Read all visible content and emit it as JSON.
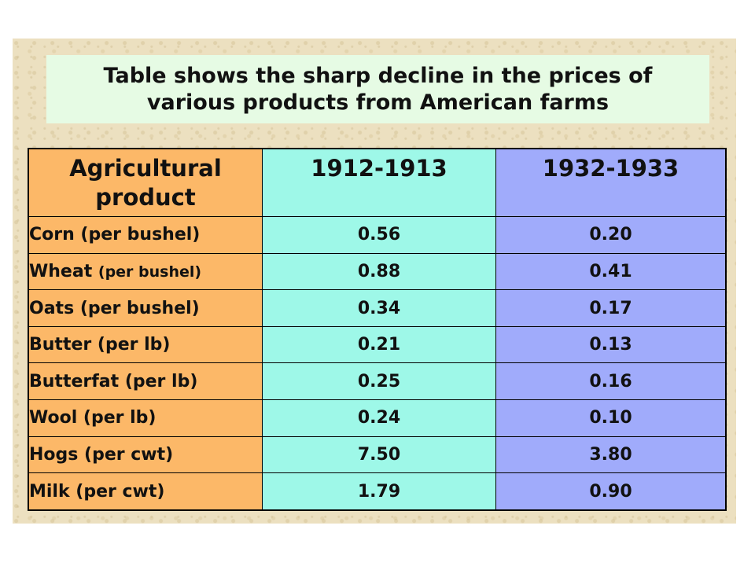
{
  "title": {
    "line1": "Table shows the sharp decline in the prices of",
    "line2": "various products from American farms"
  },
  "table": {
    "headers": {
      "product_line1": "Agricultural",
      "product_line2": "product",
      "period_1": "1912-1913",
      "period_2": "1932-1933"
    },
    "rows": [
      {
        "product": "Corn (per bushel)",
        "period_1": "0.56",
        "period_2": "0.20"
      },
      {
        "product": "Wheat",
        "product_unit": "(per bushel)",
        "period_1": "0.88",
        "period_2": "0.41"
      },
      {
        "product": "Oats (per bushel)",
        "period_1": "0.34",
        "period_2": "0.17"
      },
      {
        "product": "Butter (per lb)",
        "period_1": "0.21",
        "period_2": "0.13"
      },
      {
        "product": "Butterfat (per lb)",
        "period_1": "0.25",
        "period_2": "0.16"
      },
      {
        "product": "Wool (per lb)",
        "period_1": "0.24",
        "period_2": "0.10"
      },
      {
        "product": "Hogs (per cwt)",
        "period_1": "7.50",
        "period_2": "3.80"
      },
      {
        "product": "Milk (per cwt)",
        "period_1": "1.79",
        "period_2": "0.90"
      }
    ]
  },
  "colors": {
    "background": "#ece0c0",
    "title_box": "#e6fbe4",
    "product_column": "#fcb868",
    "period_1_column": "#9ef8e8",
    "period_2_column": "#a0abfb"
  }
}
